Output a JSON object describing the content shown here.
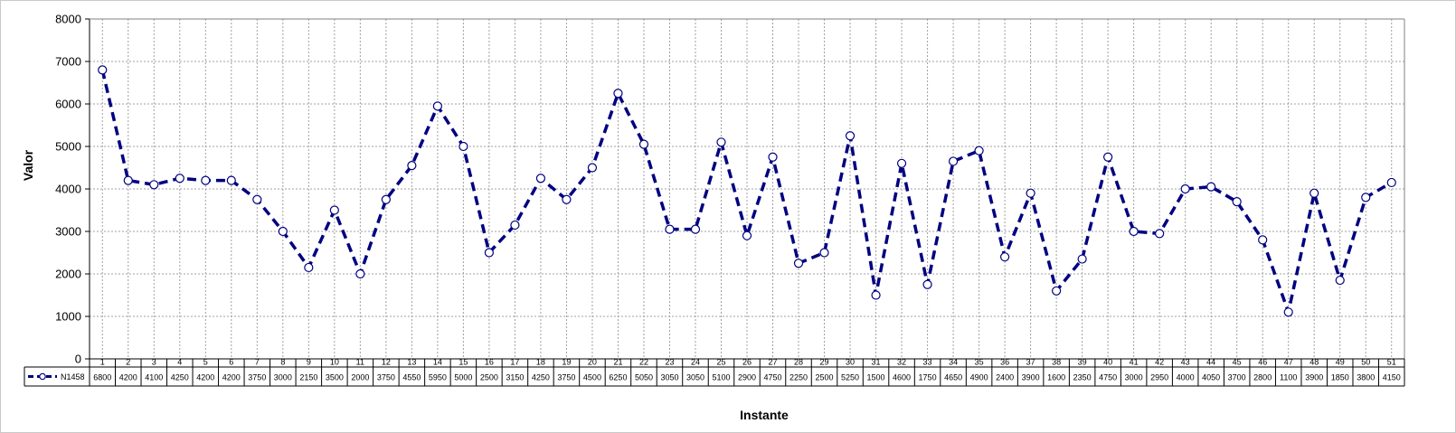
{
  "chart_data": {
    "type": "line",
    "xlabel": "Instante",
    "ylabel": "Valor",
    "ylim": [
      0,
      8000
    ],
    "yticks": [
      "0",
      "1000",
      "2000",
      "3000",
      "4000",
      "5000",
      "6000",
      "7000",
      "8000"
    ],
    "grid": true,
    "legend": "data-table-left",
    "categories": [
      "1",
      "2",
      "3",
      "4",
      "5",
      "6",
      "7",
      "8",
      "9",
      "10",
      "11",
      "12",
      "13",
      "14",
      "15",
      "16",
      "17",
      "18",
      "19",
      "20",
      "21",
      "22",
      "23",
      "24",
      "25",
      "26",
      "27",
      "28",
      "29",
      "30",
      "31",
      "32",
      "33",
      "34",
      "35",
      "36",
      "37",
      "38",
      "39",
      "40",
      "41",
      "42",
      "43",
      "44",
      "45",
      "46",
      "47",
      "48",
      "49",
      "50",
      "51"
    ],
    "series": [
      {
        "name": "N1458",
        "color": "#000080",
        "marker": "circle-open",
        "line_style": "dashed",
        "values": [
          6800,
          4200,
          4100,
          4250,
          4200,
          4200,
          3750,
          3000,
          2150,
          3500,
          2000,
          3750,
          4550,
          5950,
          5000,
          2500,
          3150,
          4250,
          3750,
          4500,
          6250,
          5050,
          3050,
          3050,
          5100,
          2900,
          4750,
          2250,
          2500,
          5250,
          1500,
          4600,
          1750,
          4650,
          4900,
          2400,
          3900,
          1600,
          2350,
          4750,
          3000,
          2950,
          4000,
          4050,
          3700,
          2800,
          1100,
          3900,
          1850,
          3800,
          4150
        ]
      }
    ]
  }
}
